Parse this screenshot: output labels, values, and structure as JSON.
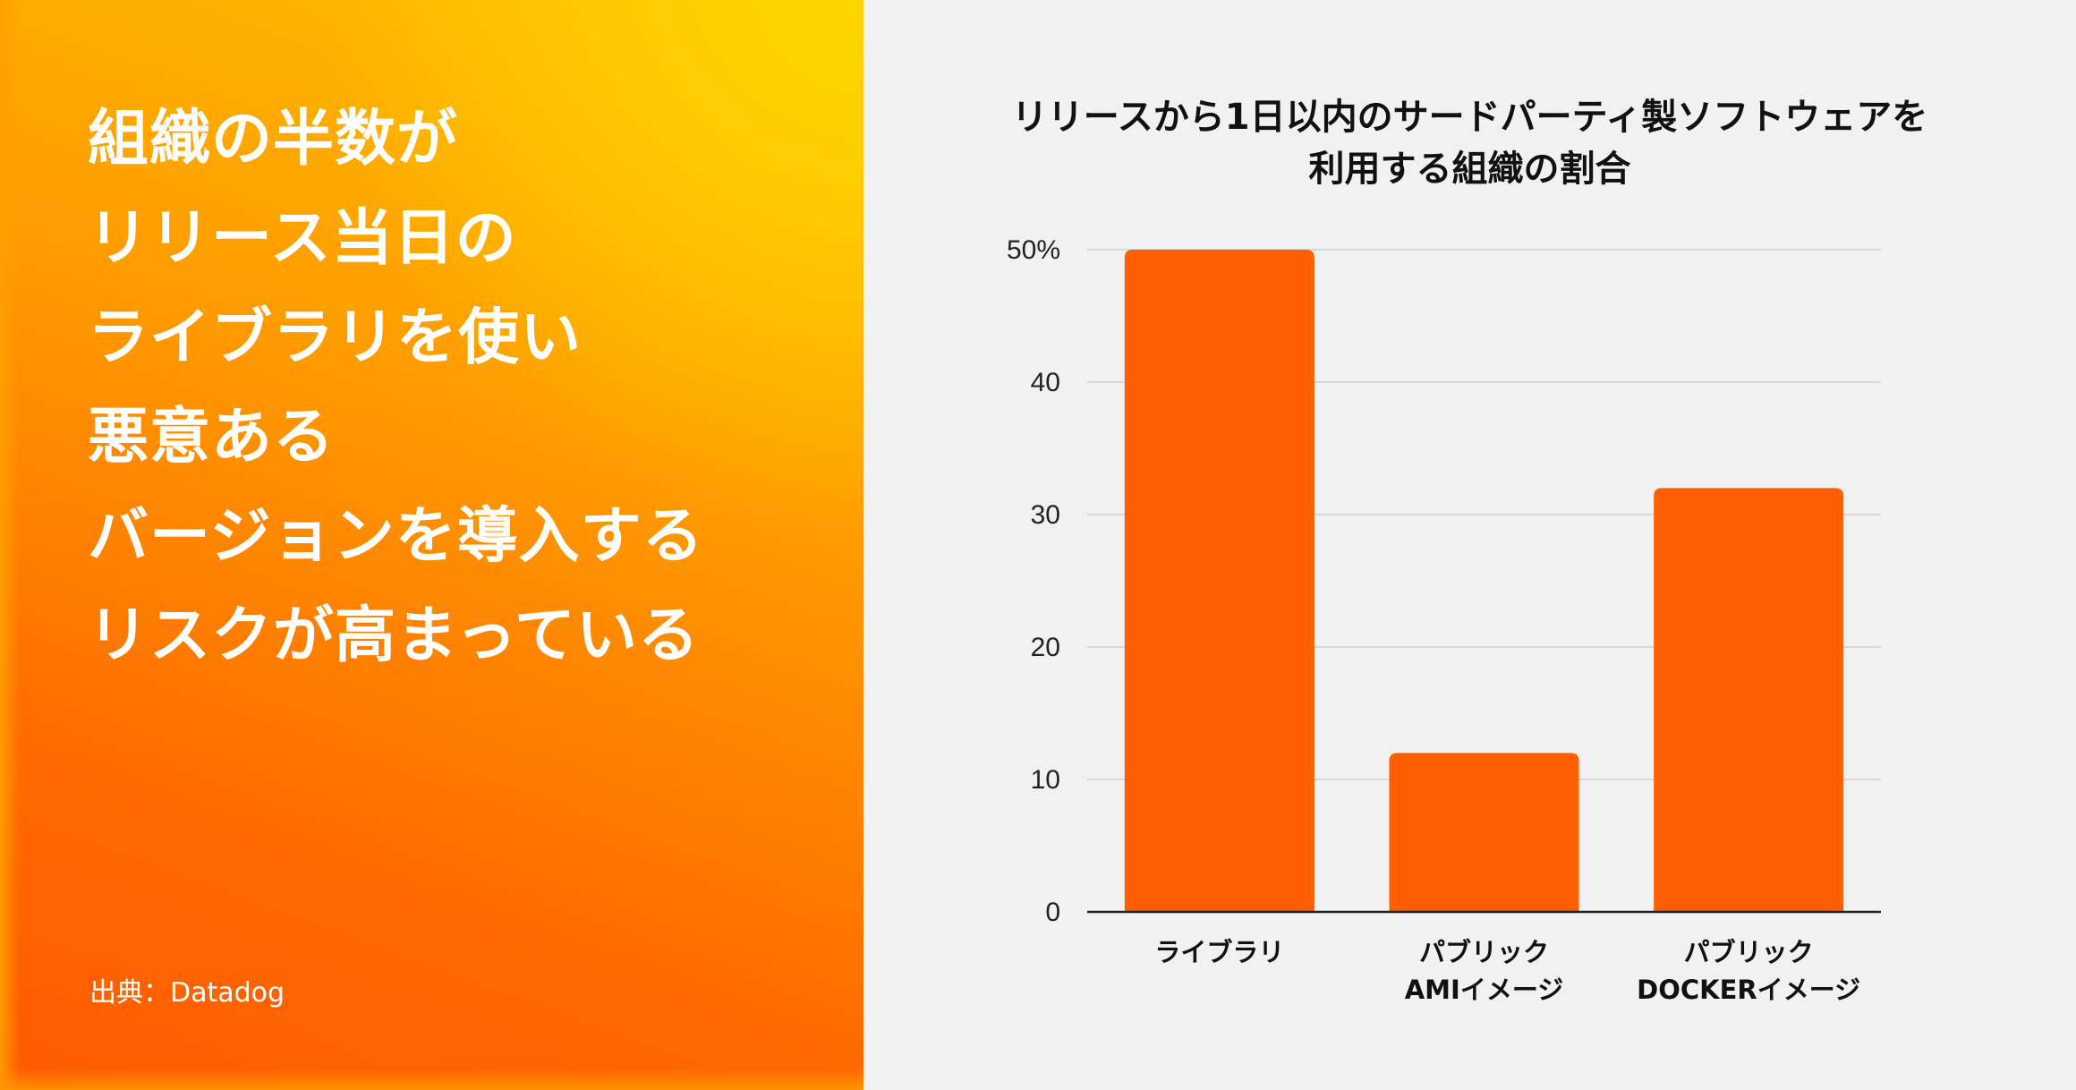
{
  "headline": {
    "lines": [
      "組織の半数が",
      "リリース当日の",
      "ライブラリを使い",
      "悪意ある",
      "バージョンを導入する",
      "リスクが高まっている"
    ]
  },
  "source": "出典：Datadog",
  "colors": {
    "bar": "#ff5f00",
    "grid": "#d0d0d0",
    "axis": "#222222",
    "text": "#111111"
  },
  "chart_data": {
    "type": "bar",
    "title_lines": [
      "リリースから1日以内のサードパーティ製ソフトウェアを",
      "利用する組織の割合"
    ],
    "categories": [
      [
        "ライブラリ"
      ],
      [
        "パブリック",
        "AMIイメージ"
      ],
      [
        "パブリック",
        "DOCKERイメージ"
      ]
    ],
    "values": [
      50,
      12,
      32
    ],
    "ylim": [
      0,
      50
    ],
    "yticks": [
      0,
      10,
      20,
      30,
      40,
      50
    ],
    "ytick_labels": [
      "0",
      "10",
      "20",
      "30",
      "40",
      "50%"
    ],
    "grid": true,
    "xlabel": "",
    "ylabel": ""
  }
}
